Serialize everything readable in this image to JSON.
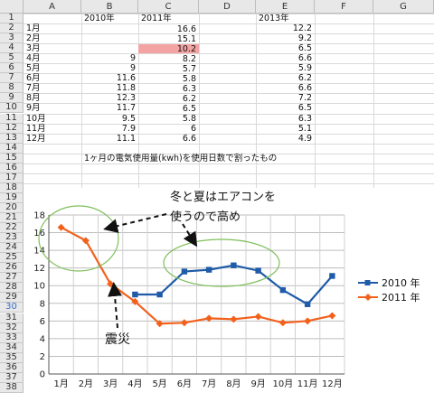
{
  "columns": [
    "A",
    "B",
    "C",
    "D",
    "E",
    "F",
    "G"
  ],
  "rows": [
    "1",
    "2",
    "3",
    "4",
    "5",
    "6",
    "7",
    "8",
    "9",
    "10",
    "11",
    "12",
    "13",
    "14",
    "15",
    "16",
    "17",
    "18",
    "19",
    "20",
    "21",
    "22",
    "23",
    "24",
    "25",
    "26",
    "27",
    "28",
    "29",
    "30",
    "31",
    "32",
    "33",
    "34",
    "35",
    "36",
    "37",
    "38"
  ],
  "selected_row": "30",
  "table": {
    "header": {
      "b": "2010年",
      "c": "2011年",
      "e": "2013年"
    },
    "data_rows": [
      {
        "month": "1月",
        "y2010": "",
        "y2011": "16.6",
        "y2013": "12.2"
      },
      {
        "month": "2月",
        "y2010": "",
        "y2011": "15.1",
        "y2013": "9.2"
      },
      {
        "month": "3月",
        "y2010": "",
        "y2011": "10.2",
        "y2013": "6.5"
      },
      {
        "month": "4月",
        "y2010": "9",
        "y2011": "8.2",
        "y2013": "6.6"
      },
      {
        "month": "5月",
        "y2010": "9",
        "y2011": "5.7",
        "y2013": "5.9"
      },
      {
        "month": "6月",
        "y2010": "11.6",
        "y2011": "5.8",
        "y2013": "6.2"
      },
      {
        "month": "7月",
        "y2010": "11.8",
        "y2011": "6.3",
        "y2013": "6.6"
      },
      {
        "month": "8月",
        "y2010": "12.3",
        "y2011": "6.2",
        "y2013": "7.2"
      },
      {
        "month": "9月",
        "y2010": "11.7",
        "y2011": "6.5",
        "y2013": "6.5"
      },
      {
        "month": "10月",
        "y2010": "9.5",
        "y2011": "5.8",
        "y2013": "6.3"
      },
      {
        "month": "11月",
        "y2010": "7.9",
        "y2011": "6",
        "y2013": "5.1"
      },
      {
        "month": "12月",
        "y2010": "11.1",
        "y2011": "6.6",
        "y2013": "4.9"
      }
    ],
    "highlight_cell": "C4",
    "highlight_color": "#f4a3a3",
    "note": "1ヶ月の電気使用量(kwh)を使用日数で割ったもの"
  },
  "annotations": {
    "cooling_heating": "冬と夏はエアコンを",
    "cooling_heating_2": "使うので高め",
    "earthquake": "震災"
  },
  "chart_data": {
    "type": "line",
    "categories": [
      "1月",
      "2月",
      "3月",
      "4月",
      "5月",
      "6月",
      "7月",
      "8月",
      "9月",
      "10月",
      "11月",
      "12月"
    ],
    "series": [
      {
        "name": "2010 年",
        "color": "#1f5ba8",
        "marker": "square",
        "values": [
          null,
          null,
          null,
          9,
          9,
          11.6,
          11.8,
          12.3,
          11.7,
          9.5,
          7.9,
          11.1
        ]
      },
      {
        "name": "2011 年",
        "color": "#f2611c",
        "marker": "diamond",
        "values": [
          16.6,
          15.1,
          10.2,
          8.2,
          5.7,
          5.8,
          6.3,
          6.2,
          6.5,
          5.8,
          6,
          6.6
        ]
      }
    ],
    "ylim": [
      0,
      18
    ],
    "yticks": [
      0,
      2,
      4,
      6,
      8,
      10,
      12,
      14,
      16,
      18
    ],
    "grid": true,
    "legend": "right"
  }
}
